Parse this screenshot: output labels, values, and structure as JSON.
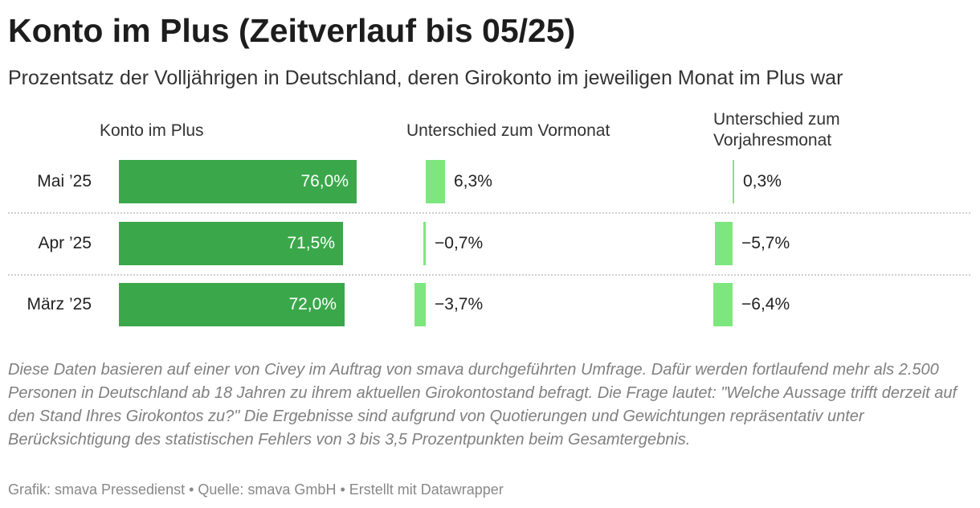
{
  "title": "Konto im Plus (Zeitverlauf bis 05/25)",
  "subtitle": "Prozentsatz der Volljährigen in Deutschland, deren Girokonto im jeweiligen Monat im Plus war",
  "columns": {
    "main": "Konto im Plus",
    "mom": "Unterschied zum Vormonat",
    "yoy_line1": "Unterschied zum",
    "yoy_line2": "Vorjahresmonat"
  },
  "colors": {
    "main_bar": "#3aa84a",
    "diff_bar": "#7ee67e"
  },
  "chart_data": {
    "type": "table",
    "title": "Konto im Plus (Zeitverlauf bis 05/25)",
    "categories": [
      "Mai ’25",
      "Apr ’25",
      "März ’25"
    ],
    "series": [
      {
        "name": "Konto im Plus",
        "values": [
          76.0,
          71.5,
          72.0
        ],
        "labels": [
          "76,0%",
          "71,5%",
          "72,0%"
        ]
      },
      {
        "name": "Unterschied zum Vormonat",
        "values": [
          6.3,
          -0.7,
          -3.7
        ],
        "labels": [
          "6,3%",
          "−0,7%",
          "−3,7%"
        ]
      },
      {
        "name": "Unterschied zum Vorjahresmonat",
        "values": [
          0.3,
          -5.7,
          -6.4
        ],
        "labels": [
          "0,3%",
          "−5,7%",
          "−6,4%"
        ]
      }
    ]
  },
  "notes": "Diese Daten basieren auf einer von Civey im Auftrag von smava durchgeführten Umfrage. Dafür werden fortlaufend mehr als 2.500 Personen in Deutschland ab 18 Jahren zu ihrem aktuellen Girokontostand befragt. Die Frage lautet: \"Welche Aussage trifft derzeit auf den Stand Ihres Girokontos zu?\" Die Ergebnisse sind aufgrund von Quotierungen und Gewichtungen repräsentativ unter Berücksichtigung des statistischen Fehlers von 3 bis 3,5 Prozentpunkten beim Gesamtergebnis.",
  "footer": "Grafik: smava Pressedienst • Quelle: smava GmbH • Erstellt mit Datawrapper"
}
